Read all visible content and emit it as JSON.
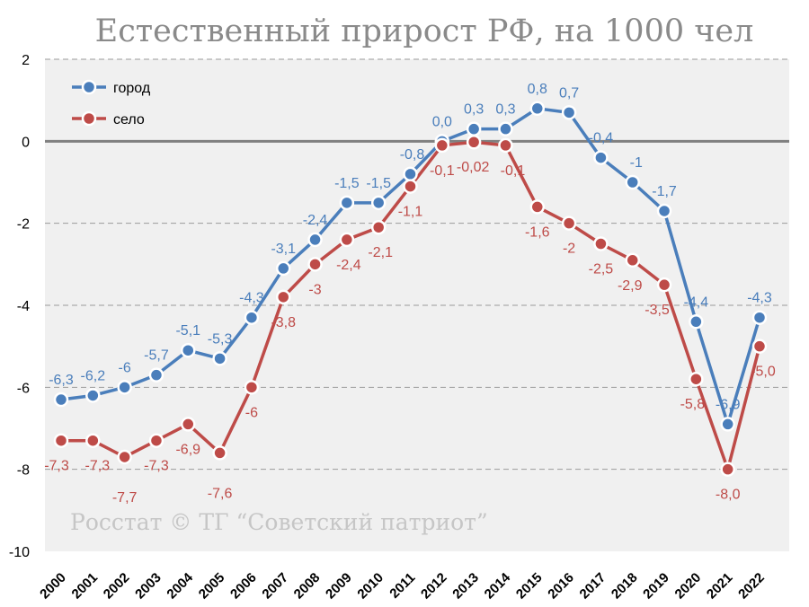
{
  "chart_data": {
    "type": "line",
    "title": "Естественный прирост РФ, на 1000 чел",
    "watermark": "Росстат © ТГ “Советский патриот”",
    "categories": [
      "2000",
      "2001",
      "2002",
      "2003",
      "2004",
      "2005",
      "2006",
      "2007",
      "2008",
      "2009",
      "2010",
      "2011",
      "2012",
      "2013",
      "2014",
      "2015",
      "2016",
      "2017",
      "2018",
      "2019",
      "2020",
      "2021",
      "2022"
    ],
    "ylim": [
      -10,
      2
    ],
    "yticks": [
      2,
      0,
      -2,
      -4,
      -6,
      -8,
      -10
    ],
    "ytick_labels": [
      "2",
      "0",
      "-2",
      "-4",
      "-6",
      "-8",
      "-10"
    ],
    "grid": true,
    "legend_position": "top-left",
    "series": [
      {
        "name": "город",
        "color": "#4a7ebb",
        "values": [
          -6.3,
          -6.2,
          -6,
          -5.7,
          -5.1,
          -5.3,
          -4.3,
          -3.1,
          -2.4,
          -1.5,
          -1.5,
          -0.8,
          0.0,
          0.3,
          0.3,
          0.8,
          0.7,
          -0.4,
          -1,
          -1.7,
          -4.4,
          -6.9,
          -4.3
        ],
        "labels": [
          "-6,3",
          "-6,2",
          "-6",
          "-5,7",
          "-5,1",
          "-5,3",
          "-4,3",
          "-3,1",
          "-2,4",
          "-1,5",
          "-1,5",
          "-0,8",
          "0,0",
          "0,3",
          "0,3",
          "0,8",
          "0,7",
          "-0,4",
          "-1",
          "-1,7",
          "-4,4",
          "-6,9",
          "-4,3"
        ]
      },
      {
        "name": "село",
        "color": "#be4b48",
        "values": [
          -7.3,
          -7.3,
          -7.7,
          -7.3,
          -6.9,
          -7.6,
          -6,
          -3.8,
          -3,
          -2.4,
          -2.1,
          -1.1,
          -0.1,
          -0.02,
          -0.1,
          -1.6,
          -2,
          -2.5,
          -2.9,
          -3.5,
          -5.8,
          -8.0,
          -5.0
        ],
        "labels": [
          "-7,3",
          "-7,3",
          "-7,7",
          "-7,3",
          "-6,9",
          "-7,6",
          "-6",
          "-3,8",
          "-3",
          "-2,4",
          "-2,1",
          "-1,1",
          "-0,1",
          "-0,02",
          "-0,1",
          "-1,6",
          "-2",
          "-2,5",
          "-2,9",
          "-3,5",
          "-5,8",
          "-8,0",
          "-5,0"
        ]
      }
    ]
  }
}
